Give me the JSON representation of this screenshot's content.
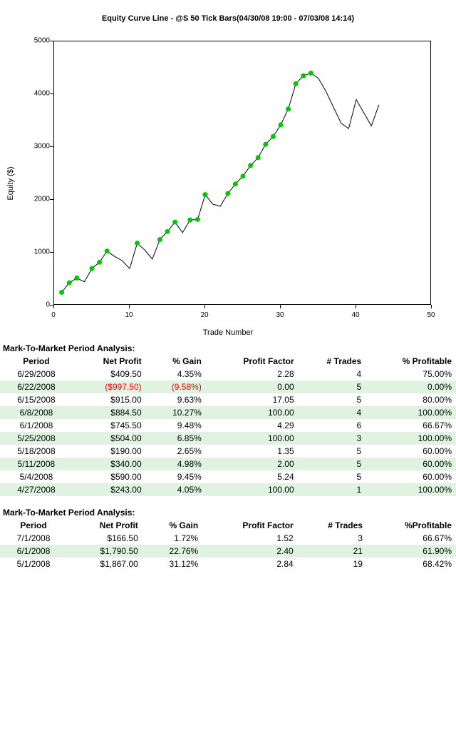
{
  "chart": {
    "title": "Equity Curve Line - @S 50 Tick Bars(04/30/08 19:00 - 07/03/08 14:14)",
    "ylabel": "Equity ($)",
    "xlabel": "Trade Number",
    "xlim": [
      0,
      50
    ],
    "ylim": [
      0,
      5000
    ],
    "yticks": [
      0,
      1000,
      2000,
      3000,
      4000,
      5000
    ],
    "xticks": [
      0,
      10,
      20,
      30,
      40,
      50
    ],
    "line_color": "#000000",
    "line_width": 1,
    "marker_color": "#00c800",
    "marker_size": 7,
    "background_color": "#ffffff",
    "border_color": "#000000",
    "all_points": [
      {
        "x": 1,
        "y": 250
      },
      {
        "x": 2,
        "y": 430
      },
      {
        "x": 3,
        "y": 520
      },
      {
        "x": 4,
        "y": 450
      },
      {
        "x": 5,
        "y": 700
      },
      {
        "x": 6,
        "y": 820
      },
      {
        "x": 7,
        "y": 1030
      },
      {
        "x": 8,
        "y": 930
      },
      {
        "x": 9,
        "y": 850
      },
      {
        "x": 10,
        "y": 700
      },
      {
        "x": 11,
        "y": 1180
      },
      {
        "x": 12,
        "y": 1050
      },
      {
        "x": 13,
        "y": 880
      },
      {
        "x": 14,
        "y": 1250
      },
      {
        "x": 15,
        "y": 1400
      },
      {
        "x": 16,
        "y": 1580
      },
      {
        "x": 17,
        "y": 1380
      },
      {
        "x": 18,
        "y": 1620
      },
      {
        "x": 19,
        "y": 1630
      },
      {
        "x": 20,
        "y": 2100
      },
      {
        "x": 21,
        "y": 1920
      },
      {
        "x": 22,
        "y": 1880
      },
      {
        "x": 23,
        "y": 2120
      },
      {
        "x": 24,
        "y": 2300
      },
      {
        "x": 25,
        "y": 2450
      },
      {
        "x": 26,
        "y": 2650
      },
      {
        "x": 27,
        "y": 2800
      },
      {
        "x": 28,
        "y": 3050
      },
      {
        "x": 29,
        "y": 3200
      },
      {
        "x": 30,
        "y": 3420
      },
      {
        "x": 31,
        "y": 3720
      },
      {
        "x": 32,
        "y": 4200
      },
      {
        "x": 33,
        "y": 4350
      },
      {
        "x": 34,
        "y": 4400
      },
      {
        "x": 35,
        "y": 4300
      },
      {
        "x": 36,
        "y": 4050
      },
      {
        "x": 37,
        "y": 3750
      },
      {
        "x": 38,
        "y": 3450
      },
      {
        "x": 39,
        "y": 3350
      },
      {
        "x": 40,
        "y": 3900
      },
      {
        "x": 41,
        "y": 3650
      },
      {
        "x": 42,
        "y": 3400
      },
      {
        "x": 43,
        "y": 3800
      }
    ],
    "marker_indices": [
      1,
      2,
      3,
      5,
      6,
      7,
      11,
      14,
      15,
      16,
      18,
      19,
      20,
      23,
      24,
      25,
      26,
      27,
      28,
      29,
      30,
      31,
      32,
      33,
      34
    ]
  },
  "table1": {
    "title": "Mark-To-Market Period Analysis:",
    "headers": [
      "Period",
      "Net Profit",
      "% Gain",
      "Profit Factor",
      "# Trades",
      "% Profitable"
    ],
    "rows": [
      {
        "period": "6/29/2008",
        "net": "$409.50",
        "gain": "4.35%",
        "pf": "2.28",
        "trades": "4",
        "prof": "75.00%",
        "neg": false
      },
      {
        "period": "6/22/2008",
        "net": "($997.50)",
        "gain": "(9.58%)",
        "pf": "0.00",
        "trades": "5",
        "prof": "0.00%",
        "neg": true
      },
      {
        "period": "6/15/2008",
        "net": "$915.00",
        "gain": "9.63%",
        "pf": "17.05",
        "trades": "5",
        "prof": "80.00%",
        "neg": false
      },
      {
        "period": "6/8/2008",
        "net": "$884.50",
        "gain": "10.27%",
        "pf": "100.00",
        "trades": "4",
        "prof": "100.00%",
        "neg": false
      },
      {
        "period": "6/1/2008",
        "net": "$745.50",
        "gain": "9.48%",
        "pf": "4.29",
        "trades": "6",
        "prof": "66.67%",
        "neg": false
      },
      {
        "period": "5/25/2008",
        "net": "$504.00",
        "gain": "6.85%",
        "pf": "100.00",
        "trades": "3",
        "prof": "100.00%",
        "neg": false
      },
      {
        "period": "5/18/2008",
        "net": "$190.00",
        "gain": "2.65%",
        "pf": "1.35",
        "trades": "5",
        "prof": "60.00%",
        "neg": false
      },
      {
        "period": "5/11/2008",
        "net": "$340.00",
        "gain": "4.98%",
        "pf": "2.00",
        "trades": "5",
        "prof": "60.00%",
        "neg": false
      },
      {
        "period": "5/4/2008",
        "net": "$590.00",
        "gain": "9.45%",
        "pf": "5.24",
        "trades": "5",
        "prof": "60.00%",
        "neg": false
      },
      {
        "period": "4/27/2008",
        "net": "$243.00",
        "gain": "4.05%",
        "pf": "100.00",
        "trades": "1",
        "prof": "100.00%",
        "neg": false
      }
    ]
  },
  "table2": {
    "title": "Mark-To-Market Period Analysis:",
    "headers": [
      "Period",
      "Net Profit",
      "% Gain",
      "Profit Factor",
      "# Trades",
      "%Profitable"
    ],
    "rows": [
      {
        "period": "7/1/2008",
        "net": "$166.50",
        "gain": "1.72%",
        "pf": "1.52",
        "trades": "3",
        "prof": "66.67%",
        "neg": false
      },
      {
        "period": "6/1/2008",
        "net": "$1,790.50",
        "gain": "22.76%",
        "pf": "2.40",
        "trades": "21",
        "prof": "61.90%",
        "neg": false
      },
      {
        "period": "5/1/2008",
        "net": "$1,867.00",
        "gain": "31.12%",
        "pf": "2.84",
        "trades": "19",
        "prof": "68.42%",
        "neg": false
      }
    ]
  }
}
